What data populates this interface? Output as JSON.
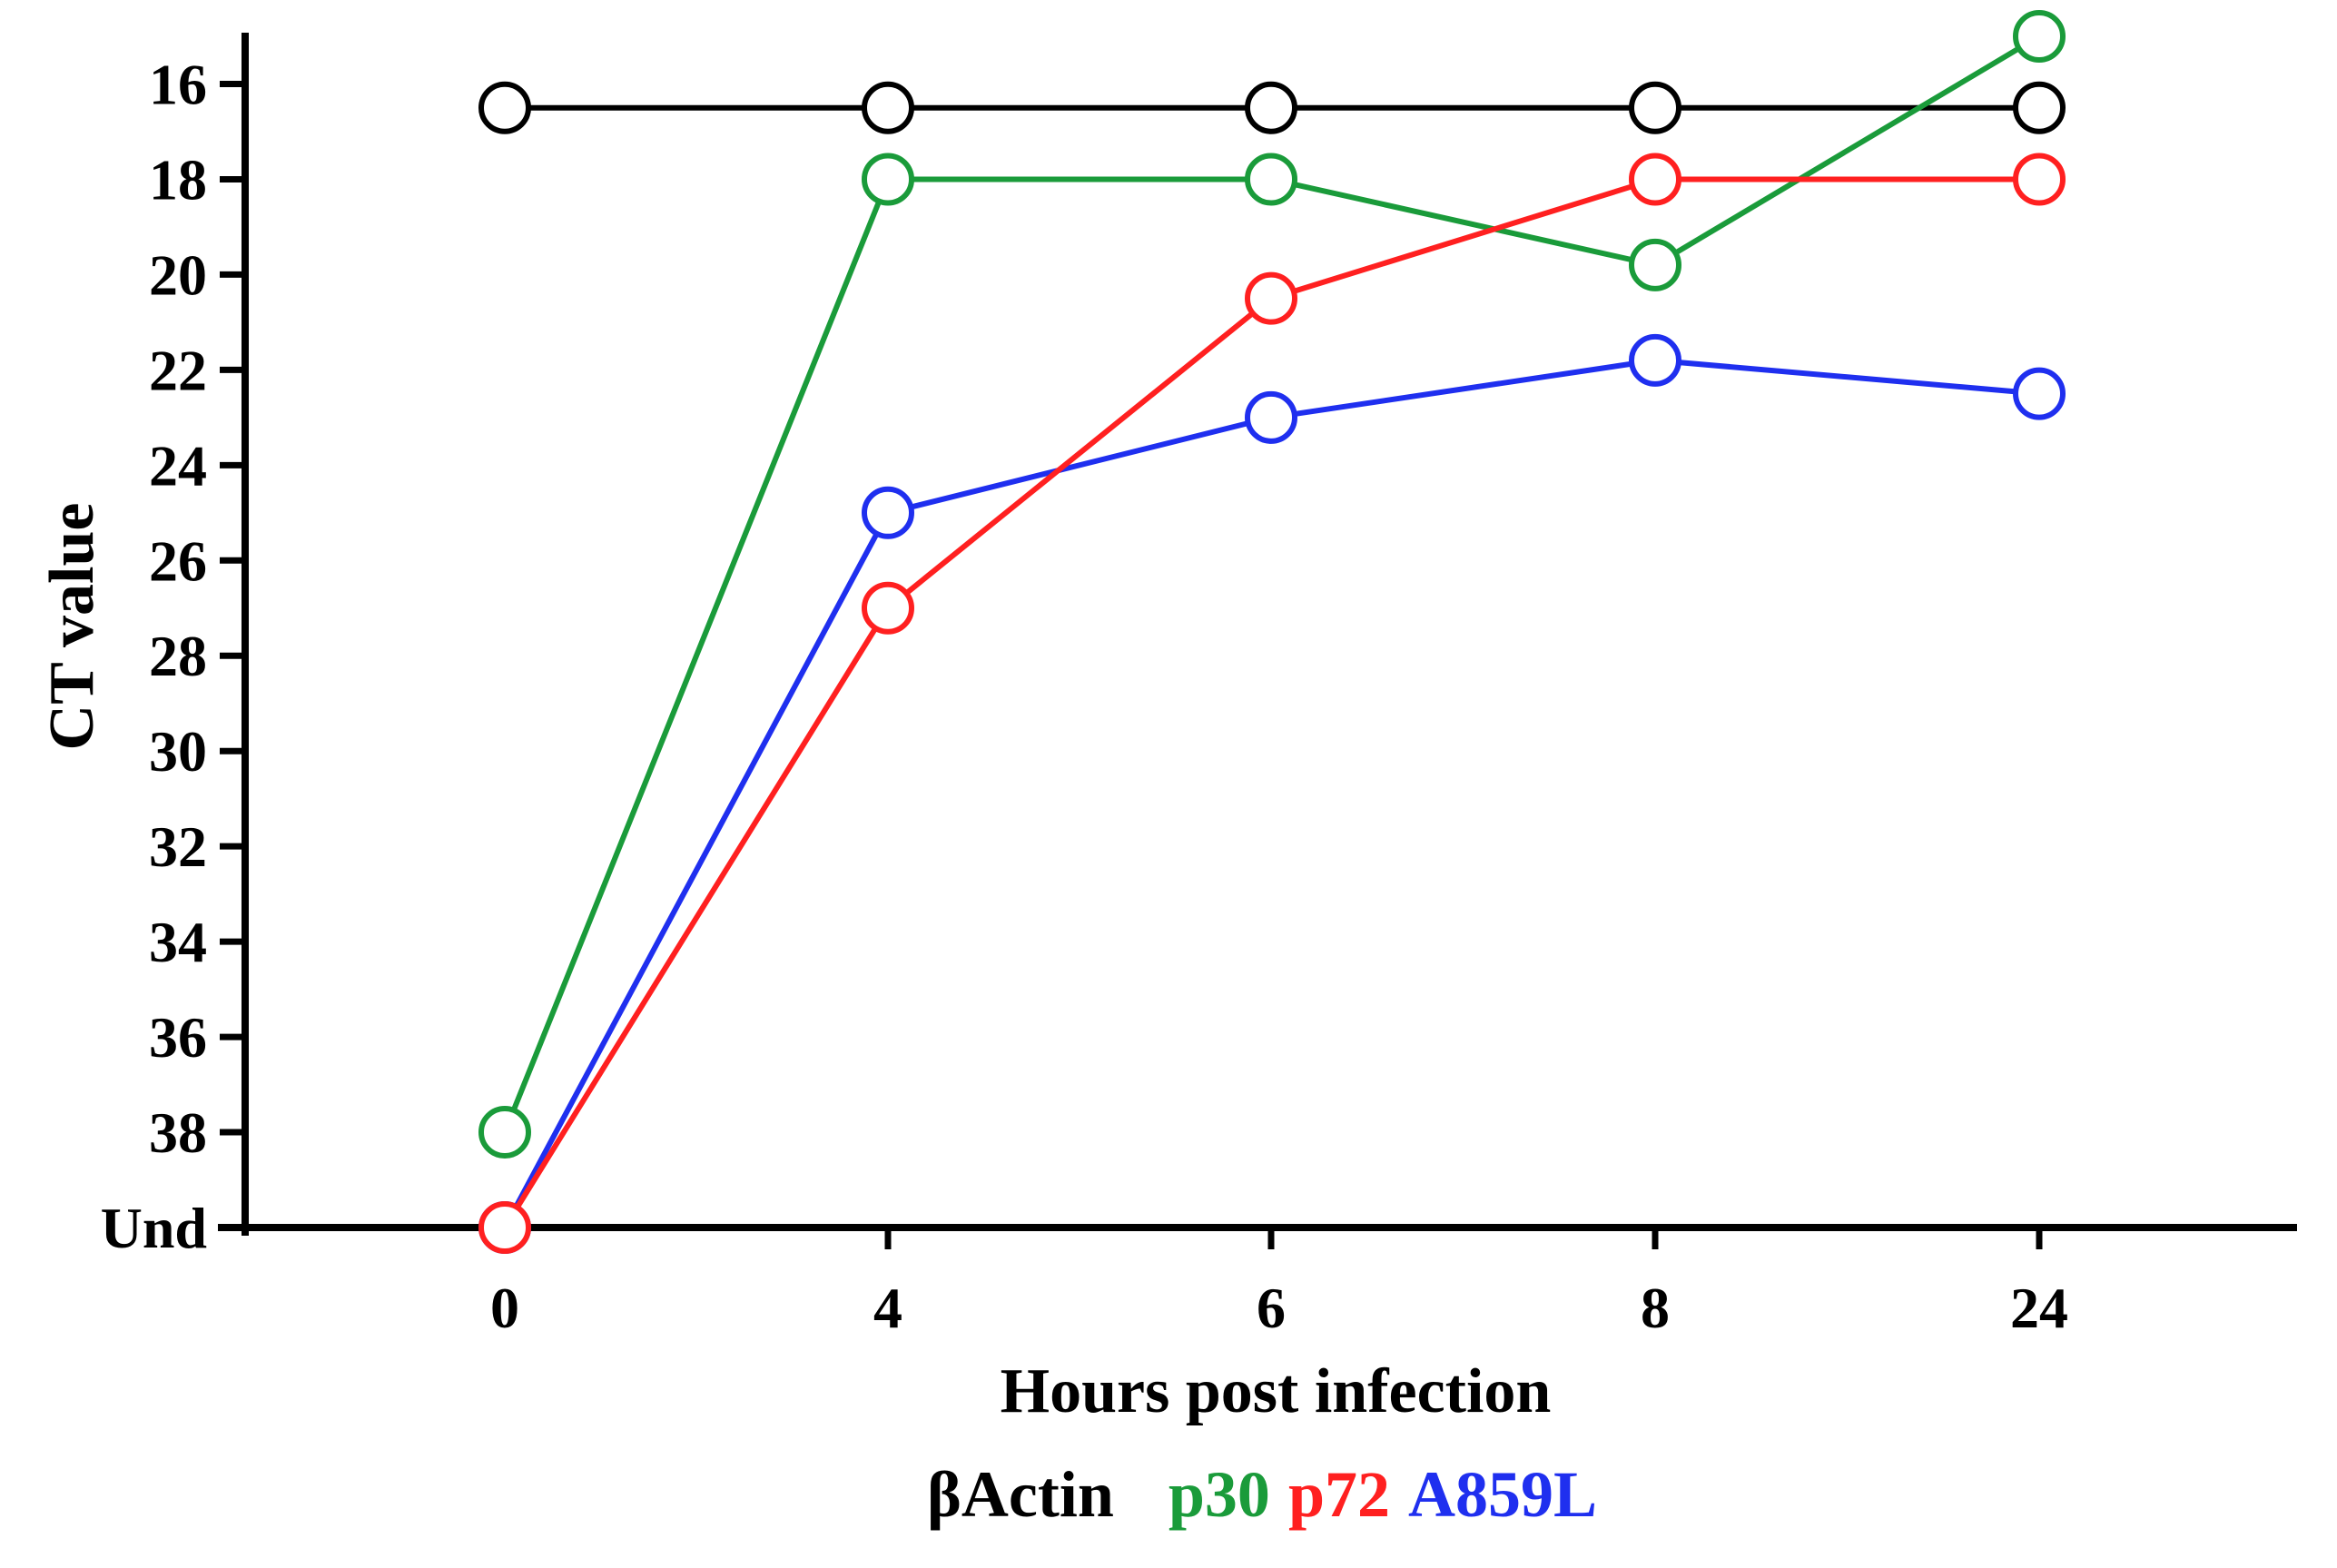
{
  "chart_data": {
    "type": "line",
    "title": "",
    "xlabel": "Hours post infection",
    "ylabel": "CT value",
    "categories": [
      "0",
      "4",
      "6",
      "8",
      "24"
    ],
    "y_axis": {
      "ylim": [
        15,
        40
      ],
      "inverted": true,
      "ticks": [
        16,
        18,
        20,
        22,
        24,
        26,
        28,
        30,
        32,
        34,
        36,
        38,
        40
      ],
      "tick_labels": [
        "16",
        "18",
        "20",
        "22",
        "24",
        "26",
        "28",
        "30",
        "32",
        "34",
        "36",
        "38",
        "Und"
      ]
    },
    "grid": false,
    "legend_position": "bottom",
    "marker": "open-circle",
    "series": [
      {
        "name": "βActin",
        "color": "#000000",
        "values": [
          16.5,
          16.5,
          16.5,
          16.5,
          16.5
        ]
      },
      {
        "name": "p30",
        "color": "#1a9b3a",
        "values": [
          38,
          18,
          18,
          19.8,
          15
        ]
      },
      {
        "name": "p72",
        "color": "#ff2020",
        "values": [
          40,
          27,
          20.5,
          18,
          18
        ]
      },
      {
        "name": "A859L",
        "color": "#1f2fef",
        "values": [
          40,
          25,
          23,
          21.8,
          22.5
        ]
      }
    ],
    "draw_order": [
      "βActin",
      "p30",
      "A859L",
      "p72"
    ]
  }
}
